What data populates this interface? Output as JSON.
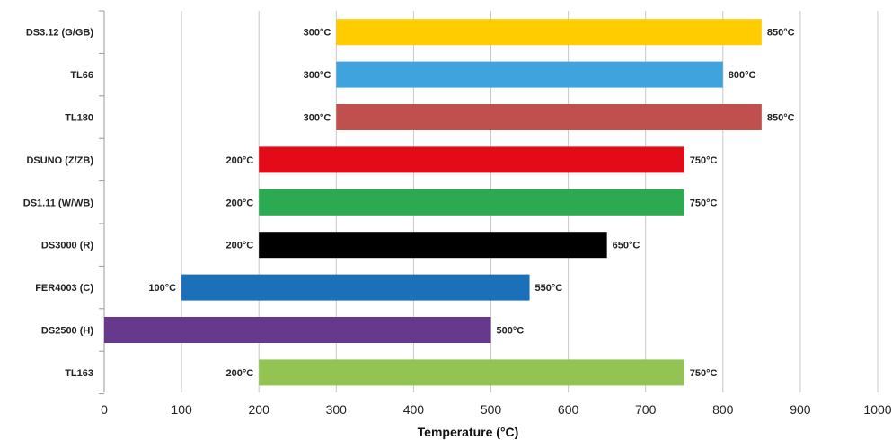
{
  "chart_data": {
    "type": "bar",
    "orientation": "horizontal",
    "xlabel": "Temperature (°C)",
    "ylabel": "",
    "xlim": [
      0,
      1000
    ],
    "x_ticks": [
      0,
      100,
      200,
      300,
      400,
      500,
      600,
      700,
      800,
      900,
      1000
    ],
    "grid": true,
    "bars": [
      {
        "category": "DS3.12 (G/GB)",
        "start": 300,
        "end": 850,
        "start_label": "300°C",
        "end_label": "850°C",
        "color": "#FFCC00"
      },
      {
        "category": "TL66",
        "start": 300,
        "end": 800,
        "start_label": "300°C",
        "end_label": "800°C",
        "color": "#3FA3DD"
      },
      {
        "category": "TL180",
        "start": 300,
        "end": 850,
        "start_label": "300°C",
        "end_label": "850°C",
        "color": "#C0504D"
      },
      {
        "category": "DSUNO (Z/ZB)",
        "start": 200,
        "end": 750,
        "start_label": "200°C",
        "end_label": "750°C",
        "color": "#E30B17"
      },
      {
        "category": "DS1.11 (W/WB)",
        "start": 200,
        "end": 750,
        "start_label": "200°C",
        "end_label": "750°C",
        "color": "#2BAA52"
      },
      {
        "category": "DS3000 (R)",
        "start": 200,
        "end": 650,
        "start_label": "200°C",
        "end_label": "650°C",
        "color": "#000000"
      },
      {
        "category": "FER4003 (C)",
        "start": 100,
        "end": 550,
        "start_label": "100°C",
        "end_label": "550°C",
        "color": "#1B70B8"
      },
      {
        "category": "DS2500 (H)",
        "start": 0,
        "end": 500,
        "start_label": "",
        "end_label": "500°C",
        "color": "#67398C"
      },
      {
        "category": "TL163",
        "start": 200,
        "end": 750,
        "start_label": "200°C",
        "end_label": "750°C",
        "color": "#92C353"
      }
    ]
  }
}
